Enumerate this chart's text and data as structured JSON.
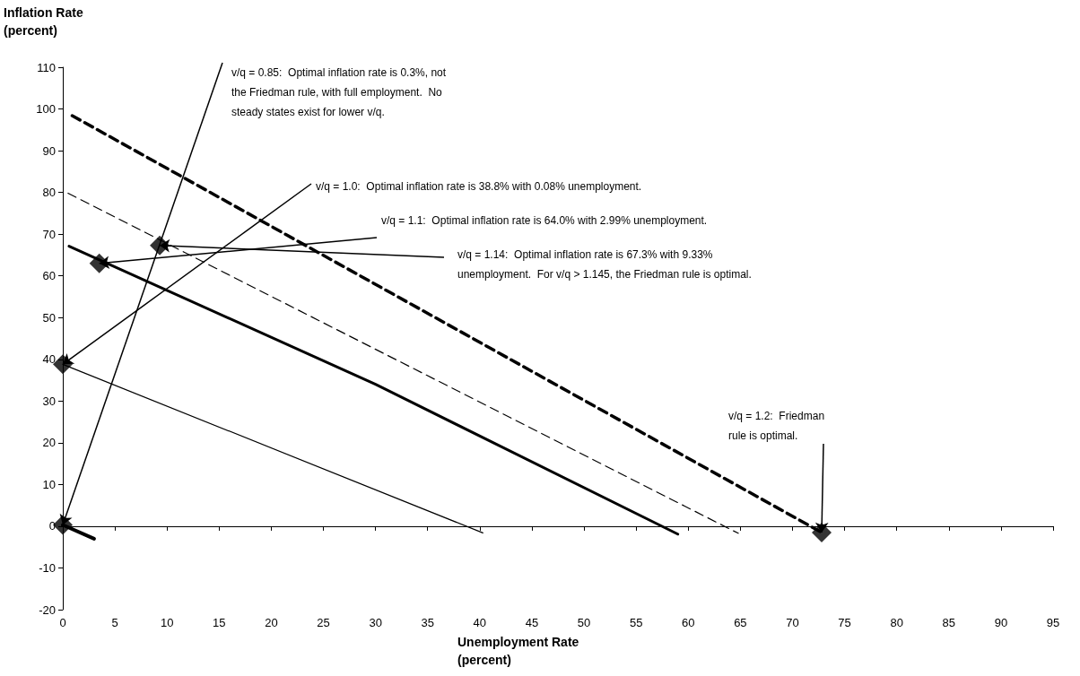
{
  "chart_data": {
    "type": "line",
    "xlabel": "Unemployment Rate (percent)",
    "ylabel": "Inflation Rate (percent)",
    "xlim": [
      0,
      95
    ],
    "xticks": [
      0,
      5,
      10,
      15,
      20,
      25,
      30,
      35,
      40,
      45,
      50,
      55,
      60,
      65,
      70,
      75,
      80,
      85,
      90,
      95
    ],
    "ylim": [
      -20,
      110
    ],
    "yticks": [
      -20,
      -10,
      0,
      10,
      20,
      30,
      40,
      50,
      60,
      70,
      80,
      90,
      100,
      110
    ],
    "series": [
      {
        "color": "#000000",
        "line_style": "solid",
        "x": [
          0,
          3
        ],
        "values": [
          0.3,
          -3
        ]
      },
      {
        "color": "#000000",
        "line_style": "solid",
        "x": [
          0,
          40.3
        ],
        "values": [
          38.8,
          -1.6
        ]
      },
      {
        "color": "#000000",
        "line_style": "dashed",
        "x": [
          0.5,
          64.8
        ],
        "values": [
          79.8,
          -1.7
        ]
      },
      {
        "color": "#000000",
        "line_style": "solid",
        "x": [
          0.6,
          30,
          59
        ],
        "values": [
          67.1,
          34,
          -1.9
        ]
      },
      {
        "color": "#000000",
        "line_style": "dashed",
        "x": [
          0.9,
          72.8
        ],
        "values": [
          98.4,
          -1.5
        ]
      },
      {
        "type": "scatter",
        "marker": "diamond",
        "color": "#000000",
        "x": [
          0,
          0,
          3.5,
          9.3,
          72.8
        ],
        "values": [
          0.3,
          38.8,
          63,
          67.3,
          -1.5
        ]
      }
    ],
    "annotations": [
      {
        "text": "v/q = 0.85:  Optimal inflation rate is 0.3%, not the Friedman rule, with full employment.  No steady states exist for lower v/q.",
        "x": 0,
        "y": 0.3
      },
      {
        "text": "v/q = 1.0:  Optimal inflation rate is 38.8% with 0.08% unemployment.",
        "x": 0,
        "y": 38.8
      },
      {
        "text": "v/q = 1.1:  Optimal inflation rate is 64.0% with 2.99% unemployment.",
        "x": 3.5,
        "y": 63
      },
      {
        "text": "v/q = 1.14:  Optimal inflation rate is 67.3% with 9.33% unemployment.  For v/q > 1.145, the Friedman rule is optimal.",
        "x": 9.3,
        "y": 67.3
      },
      {
        "text": "v/q = 1.2:  Friedman rule is optimal.",
        "x": 72.8,
        "y": -1.5
      }
    ]
  }
}
